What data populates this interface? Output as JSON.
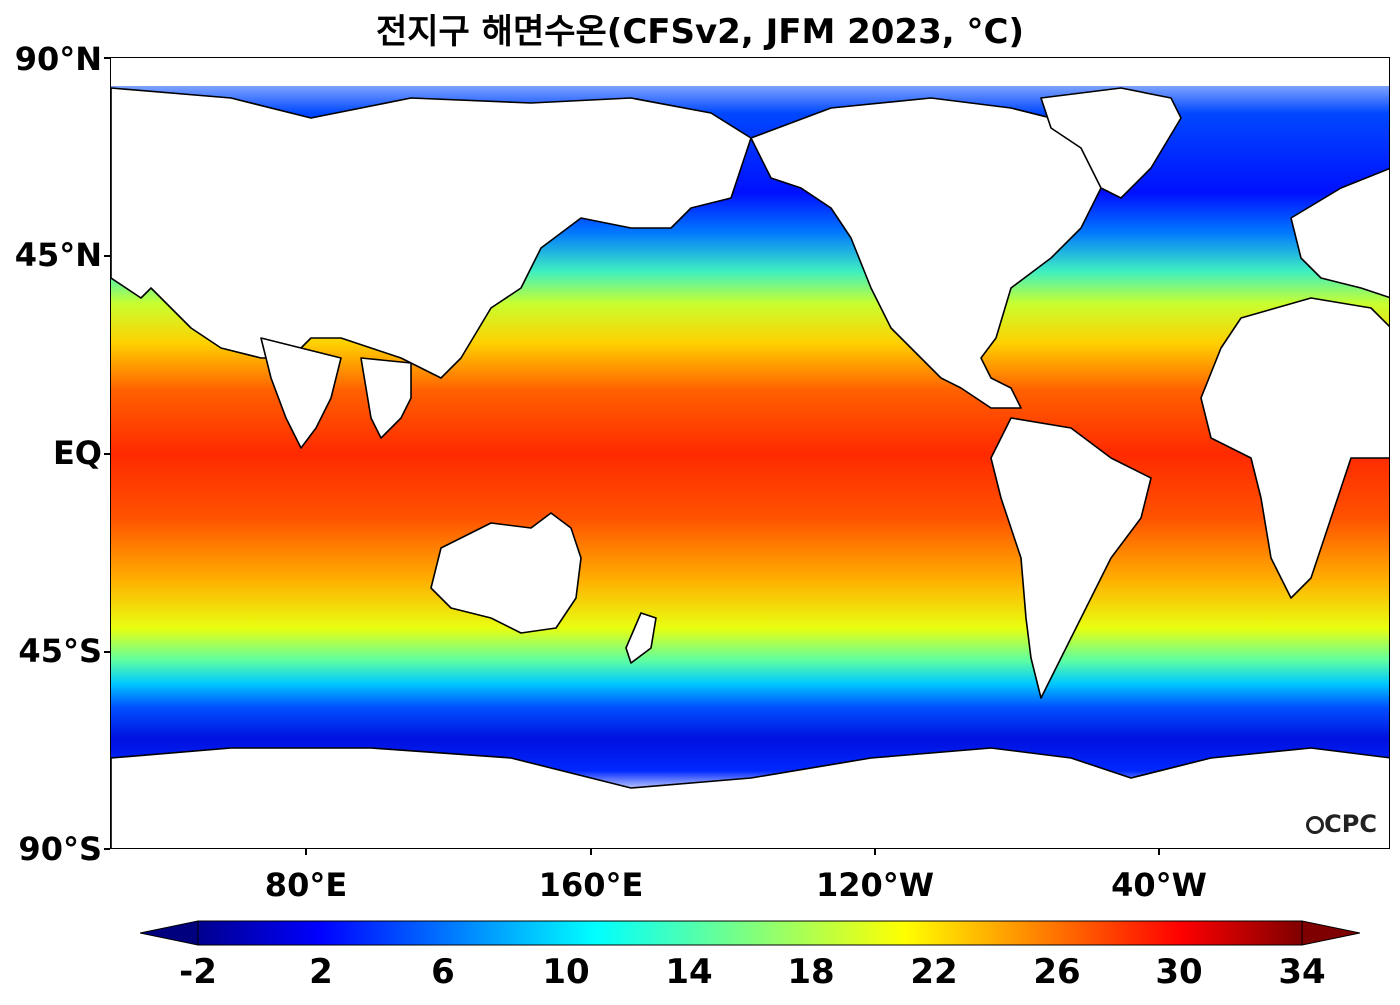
{
  "title": "전지구 해면수온(CFSv2, JFM 2023, °C)",
  "map": {
    "lat_labels": [
      "90°N",
      "45°N",
      "EQ",
      "45°S",
      "90°S"
    ],
    "lon_labels": [
      "80°E",
      "160°E",
      "120°W",
      "40°W"
    ],
    "logo_text": "CPC"
  },
  "colorbar": {
    "ticks": [
      "-2",
      "2",
      "6",
      "10",
      "14",
      "18",
      "22",
      "26",
      "30",
      "34"
    ],
    "min": -2,
    "max": 34,
    "extend": "both",
    "colormap": "jet",
    "colors": [
      "#00007f",
      "#0000ff",
      "#007fff",
      "#00ffff",
      "#7fff7f",
      "#ffff00",
      "#ff7f00",
      "#ff0000",
      "#7f0000"
    ]
  }
}
